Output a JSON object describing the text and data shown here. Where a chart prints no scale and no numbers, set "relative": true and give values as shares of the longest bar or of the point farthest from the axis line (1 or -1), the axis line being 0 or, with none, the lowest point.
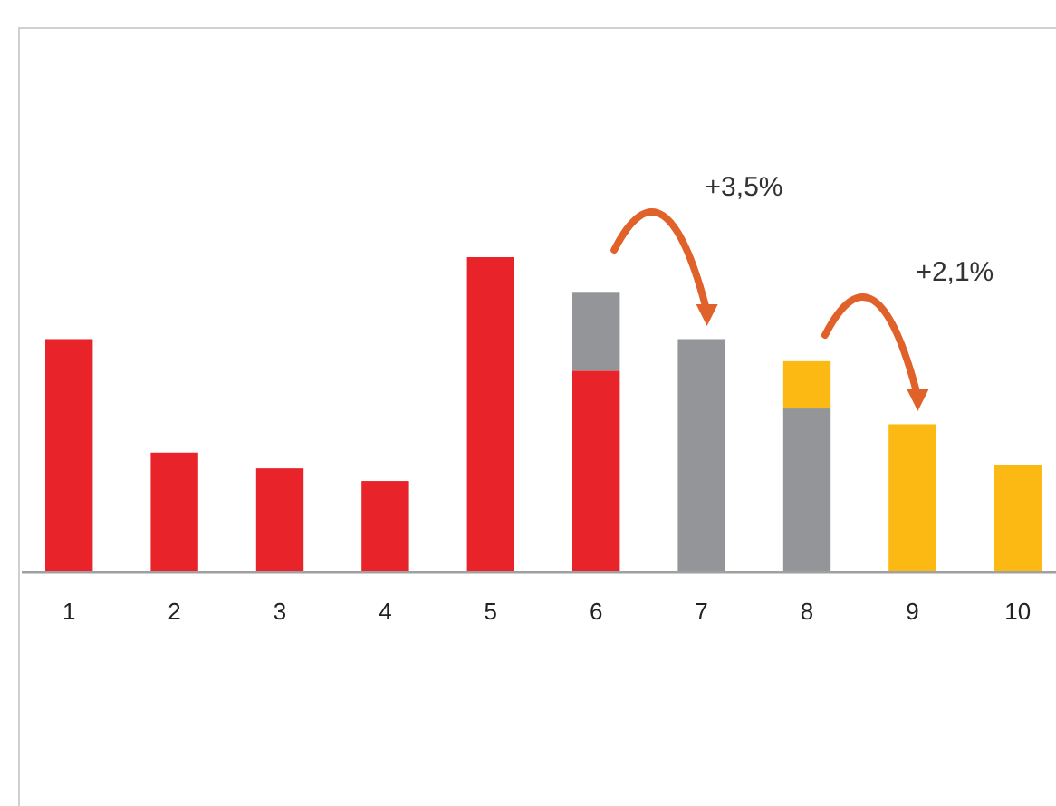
{
  "chart_data": {
    "type": "bar",
    "relative": true,
    "stacked": true,
    "categories": [
      "1",
      "2",
      "3",
      "4",
      "5",
      "6",
      "7",
      "8",
      "9",
      "10"
    ],
    "series": [
      {
        "color": "#e8232a",
        "values": [
          0.74,
          0.38,
          0.33,
          0.29,
          1,
          0.64,
          null,
          null,
          null,
          null
        ]
      },
      {
        "color": "#939598",
        "values": [
          null,
          null,
          null,
          null,
          null,
          0.25,
          0.74,
          0.52,
          null,
          null
        ]
      },
      {
        "color": "#fdb913",
        "values": [
          null,
          null,
          null,
          null,
          null,
          null,
          null,
          0.15,
          0.47,
          0.34
        ]
      }
    ],
    "annotations": [
      "+3,5%",
      "+2,1%"
    ]
  }
}
